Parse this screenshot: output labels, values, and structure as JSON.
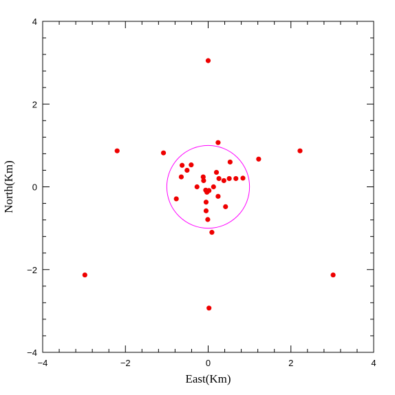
{
  "chart_data": {
    "type": "scatter",
    "xlabel": "East(Km)",
    "ylabel": "North(Km)",
    "xlim": [
      -4,
      4
    ],
    "ylim": [
      -4,
      4
    ],
    "xticks": [
      -4,
      -2,
      0,
      2,
      4
    ],
    "yticks": [
      -4,
      -2,
      0,
      2,
      4
    ],
    "xtick_labels": [
      "−4",
      "−2",
      "0",
      "2",
      "4"
    ],
    "ytick_labels": [
      "−4",
      "−2",
      "0",
      "2",
      "4"
    ],
    "point_color": "#ee0000",
    "circle": {
      "cx": 0,
      "cy": 0,
      "r": 1,
      "color": "#ff00ff"
    },
    "points": [
      {
        "x": 0.0,
        "y": 3.05
      },
      {
        "x": -2.2,
        "y": 0.87
      },
      {
        "x": -1.08,
        "y": 0.82
      },
      {
        "x": 0.24,
        "y": 1.07
      },
      {
        "x": 1.22,
        "y": 0.67
      },
      {
        "x": 2.22,
        "y": 0.87
      },
      {
        "x": -0.63,
        "y": 0.52
      },
      {
        "x": -0.41,
        "y": 0.53
      },
      {
        "x": -0.51,
        "y": 0.4
      },
      {
        "x": -0.65,
        "y": 0.24
      },
      {
        "x": -0.12,
        "y": 0.24
      },
      {
        "x": -0.11,
        "y": 0.15
      },
      {
        "x": 0.2,
        "y": 0.35
      },
      {
        "x": 0.26,
        "y": 0.2
      },
      {
        "x": 0.38,
        "y": 0.15
      },
      {
        "x": 0.53,
        "y": 0.6
      },
      {
        "x": 0.51,
        "y": 0.2
      },
      {
        "x": 0.67,
        "y": 0.2
      },
      {
        "x": 0.84,
        "y": 0.21
      },
      {
        "x": -0.27,
        "y": 0.0
      },
      {
        "x": 0.13,
        "y": 0.0
      },
      {
        "x": -0.06,
        "y": -0.08
      },
      {
        "x": 0.02,
        "y": -0.09
      },
      {
        "x": -0.03,
        "y": -0.13
      },
      {
        "x": -0.77,
        "y": -0.29
      },
      {
        "x": 0.24,
        "y": -0.23
      },
      {
        "x": -0.05,
        "y": -0.37
      },
      {
        "x": 0.42,
        "y": -0.48
      },
      {
        "x": -0.05,
        "y": -0.58
      },
      {
        "x": -0.01,
        "y": -0.79
      },
      {
        "x": 0.09,
        "y": -1.1
      },
      {
        "x": -2.98,
        "y": -2.13
      },
      {
        "x": 3.02,
        "y": -2.13
      },
      {
        "x": 0.02,
        "y": -2.93
      }
    ]
  }
}
